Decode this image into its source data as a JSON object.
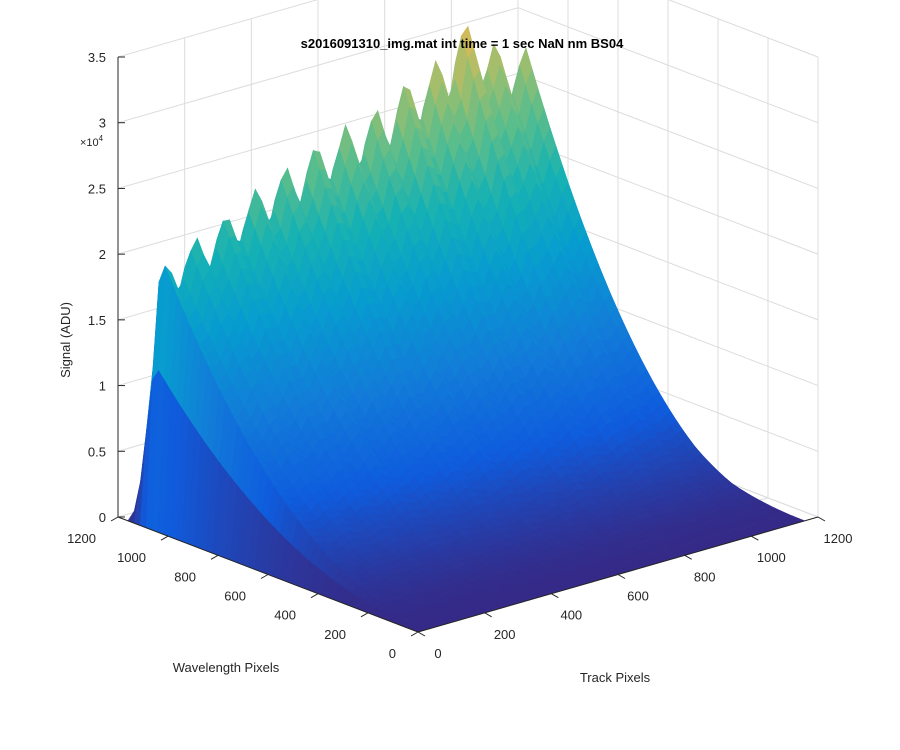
{
  "chart_data": {
    "type": "surface",
    "title": "s2016091310_img.mat int time = 1 sec  NaN nm BS04",
    "xlabel": "Track Pixels",
    "ylabel": "Wavelength Pixels",
    "zlabel": "Signal (ADU)",
    "z_exponent_label": "×10",
    "z_exponent_power": "4",
    "xlim": [
      0,
      1200
    ],
    "ylim": [
      0,
      1200
    ],
    "zlim": [
      0,
      35000
    ],
    "x_ticks": [
      "0",
      "200",
      "400",
      "600",
      "800",
      "1000",
      "1200"
    ],
    "y_ticks": [
      "0",
      "200",
      "400",
      "600",
      "800",
      "1000",
      "1200"
    ],
    "z_ticks": [
      "0",
      "0.5",
      "1",
      "1.5",
      "2",
      "2.5",
      "3",
      "3.5"
    ],
    "grid": true,
    "colormap": "parula",
    "peak_signal": 34000,
    "num_tracks": 13,
    "track_peak_values": [
      20500,
      22000,
      23000,
      24500,
      25500,
      26500,
      27500,
      28000,
      29500,
      30500,
      33000,
      30500,
      29500
    ],
    "colors": {
      "low": "#352a87",
      "mid_low": "#1f6ee0",
      "mid": "#12b3c3",
      "mid_high": "#82c95e",
      "high": "#fbbb3d",
      "peak": "#f9fb0e"
    }
  }
}
